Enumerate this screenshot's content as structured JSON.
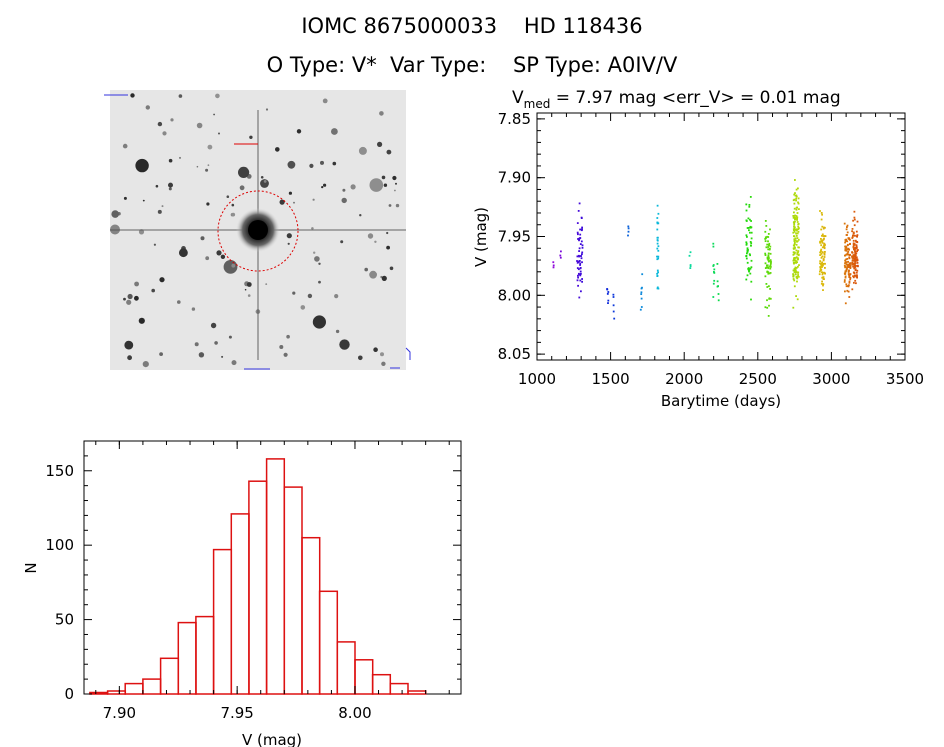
{
  "header": {
    "line1": "IOMC 8675000033    HD 118436",
    "line2": "O Type: V*  Var Type:    SP Type: A0IV/V"
  },
  "image_panel": {
    "alt": "DSS sky image centered on target with red aperture circle"
  },
  "chart_data": [
    {
      "type": "scatter",
      "title_parts": {
        "v": "V",
        "sub": "med",
        "rest": " = 7.97 mag <err_V> = 0.01 mag"
      },
      "xlabel": "Barytime (days)",
      "ylabel": "V (mag)",
      "xlim": [
        1000,
        3500
      ],
      "ylim": [
        8.055,
        7.845
      ],
      "xticks": [
        1000,
        1500,
        2000,
        2500,
        3000,
        3500
      ],
      "yticks": [
        7.85,
        7.9,
        7.95,
        8.0,
        8.05
      ],
      "ytick_labels": [
        "7.85",
        "7.90",
        "7.95",
        "8.00",
        "8.05"
      ],
      "grid": false,
      "color_map": "rainbow by time (purple to red)",
      "clusters": [
        {
          "x": 1110,
          "ymin": 7.97,
          "ymax": 7.98,
          "n": 3
        },
        {
          "x": 1160,
          "ymin": 7.96,
          "ymax": 7.975,
          "n": 3
        },
        {
          "x": 1290,
          "ymin": 7.91,
          "ymax": 8.025,
          "n": 60
        },
        {
          "x": 1480,
          "ymin": 7.985,
          "ymax": 8.02,
          "n": 6
        },
        {
          "x": 1520,
          "ymin": 7.985,
          "ymax": 8.03,
          "n": 5
        },
        {
          "x": 1620,
          "ymin": 7.93,
          "ymax": 7.955,
          "n": 4
        },
        {
          "x": 1710,
          "ymin": 7.975,
          "ymax": 8.015,
          "n": 8
        },
        {
          "x": 1820,
          "ymin": 7.91,
          "ymax": 8.005,
          "n": 28
        },
        {
          "x": 2040,
          "ymin": 7.94,
          "ymax": 7.99,
          "n": 5
        },
        {
          "x": 2200,
          "ymin": 7.935,
          "ymax": 8.02,
          "n": 10
        },
        {
          "x": 2230,
          "ymin": 7.96,
          "ymax": 8.03,
          "n": 6
        },
        {
          "x": 2440,
          "ymin": 7.9,
          "ymax": 8.015,
          "n": 55
        },
        {
          "x": 2570,
          "ymin": 7.915,
          "ymax": 8.03,
          "n": 70
        },
        {
          "x": 2760,
          "ymin": 7.89,
          "ymax": 8.015,
          "n": 150
        },
        {
          "x": 2940,
          "ymin": 7.92,
          "ymax": 8.01,
          "n": 90
        },
        {
          "x": 3110,
          "ymin": 7.925,
          "ymax": 8.012,
          "n": 110
        },
        {
          "x": 3160,
          "ymin": 7.922,
          "ymax": 8.005,
          "n": 120
        }
      ]
    },
    {
      "type": "bar",
      "subtype": "histogram",
      "xlabel": "V (mag)",
      "ylabel": "N",
      "xlim": [
        7.885,
        8.045
      ],
      "ylim": [
        0,
        170
      ],
      "xticks": [
        7.9,
        7.95,
        8.0
      ],
      "xtick_labels": [
        "7.90",
        "7.95",
        "8.00"
      ],
      "yticks": [
        0,
        50,
        100,
        150
      ],
      "bar_color": "#dd1111",
      "bin_width": 0.0075,
      "bins_start": 7.8875,
      "values": [
        1,
        2,
        7,
        10,
        24,
        48,
        52,
        97,
        121,
        143,
        158,
        139,
        105,
        69,
        35,
        23,
        13,
        7,
        2
      ]
    }
  ]
}
